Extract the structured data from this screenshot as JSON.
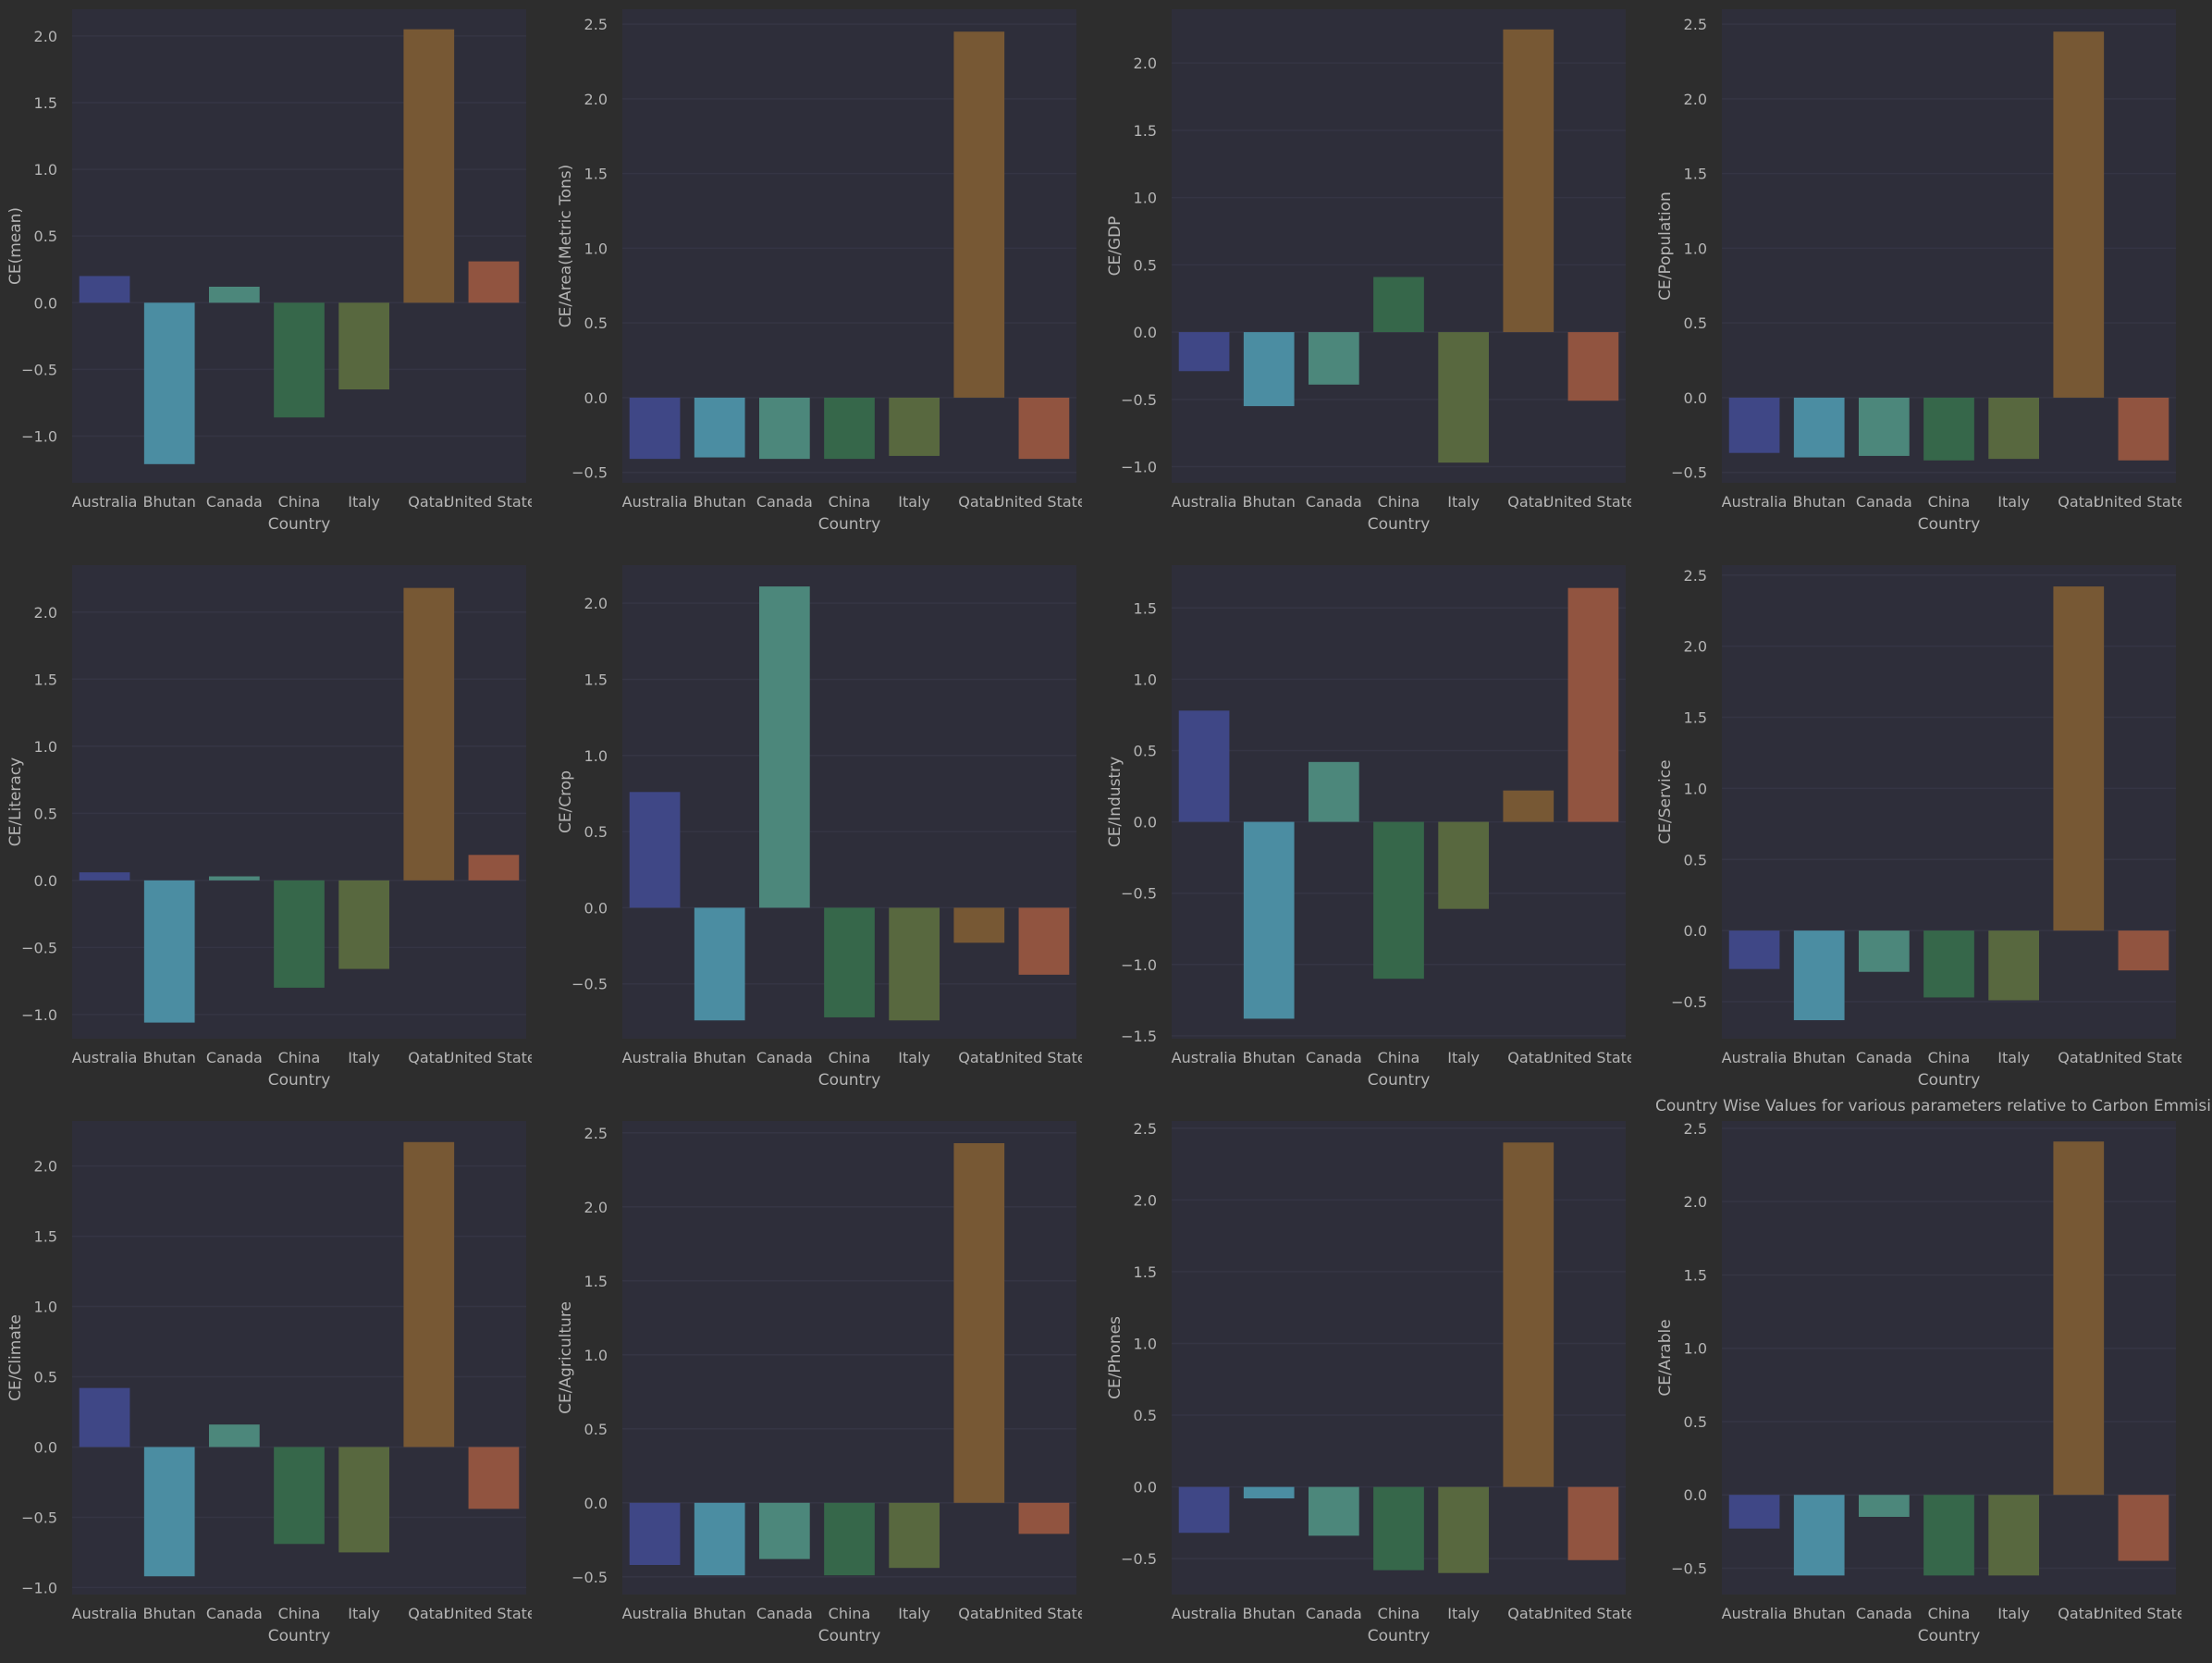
{
  "figure": {
    "suptitle": "Country Wise Values for various parameters relative to Carbon Emmisions",
    "colors": {
      "figure_bg": "#2d2d2d",
      "axes_bg": "#2e2e3a",
      "grid": "#353544",
      "text": "#b4b4b4",
      "bars": [
        "#3f4786",
        "#4b8da2",
        "#4c877b",
        "#36674a",
        "#58683f",
        "#775834",
        "#915440"
      ]
    }
  },
  "chart_data": [
    {
      "type": "bar",
      "xlabel": "Country",
      "ylabel": "CE(mean)",
      "categories": [
        "Australia",
        "Bhutan",
        "Canada",
        "China",
        "Italy",
        "Qatar",
        "United States"
      ],
      "values": [
        0.2,
        -1.21,
        0.12,
        -0.86,
        -0.65,
        2.05,
        0.31
      ],
      "ylim": [
        -1.35,
        2.2
      ],
      "yticks": [
        -1.0,
        -0.5,
        0.0,
        0.5,
        1.0,
        1.5,
        2.0
      ],
      "grid": true
    },
    {
      "type": "bar",
      "xlabel": "Country",
      "ylabel": "CE/Area(Metric Tons)",
      "categories": [
        "Australia",
        "Bhutan",
        "Canada",
        "China",
        "Italy",
        "Qatar",
        "United States"
      ],
      "values": [
        -0.41,
        -0.4,
        -0.41,
        -0.41,
        -0.39,
        2.45,
        -0.41
      ],
      "ylim": [
        -0.57,
        2.6
      ],
      "yticks": [
        -0.5,
        0.0,
        0.5,
        1.0,
        1.5,
        2.0,
        2.5
      ],
      "grid": true
    },
    {
      "type": "bar",
      "xlabel": "Country",
      "ylabel": "CE/GDP",
      "categories": [
        "Australia",
        "Bhutan",
        "Canada",
        "China",
        "Italy",
        "Qatar",
        "United States"
      ],
      "values": [
        -0.29,
        -0.55,
        -0.39,
        0.41,
        -0.97,
        2.25,
        -0.51
      ],
      "ylim": [
        -1.12,
        2.4
      ],
      "yticks": [
        -1.0,
        -0.5,
        0.0,
        0.5,
        1.0,
        1.5,
        2.0
      ],
      "grid": true
    },
    {
      "type": "bar",
      "xlabel": "Country",
      "ylabel": "CE/Population",
      "categories": [
        "Australia",
        "Bhutan",
        "Canada",
        "China",
        "Italy",
        "Qatar",
        "United States"
      ],
      "values": [
        -0.37,
        -0.4,
        -0.39,
        -0.42,
        -0.41,
        2.45,
        -0.42
      ],
      "ylim": [
        -0.57,
        2.6
      ],
      "yticks": [
        -0.5,
        0.0,
        0.5,
        1.0,
        1.5,
        2.0,
        2.5
      ],
      "grid": true
    },
    {
      "type": "bar",
      "xlabel": "Country",
      "ylabel": "CE/Literacy",
      "categories": [
        "Australia",
        "Bhutan",
        "Canada",
        "China",
        "Italy",
        "Qatar",
        "United States"
      ],
      "values": [
        0.06,
        -1.06,
        0.03,
        -0.8,
        -0.66,
        2.18,
        0.19
      ],
      "ylim": [
        -1.18,
        2.35
      ],
      "yticks": [
        -1.0,
        -0.5,
        0.0,
        0.5,
        1.0,
        1.5,
        2.0
      ],
      "grid": true
    },
    {
      "type": "bar",
      "xlabel": "Country",
      "ylabel": "CE/Crop",
      "categories": [
        "Australia",
        "Bhutan",
        "Canada",
        "China",
        "Italy",
        "Qatar",
        "United States"
      ],
      "values": [
        0.76,
        -0.74,
        2.11,
        -0.72,
        -0.74,
        -0.23,
        -0.44
      ],
      "ylim": [
        -0.86,
        2.25
      ],
      "yticks": [
        -0.5,
        0.0,
        0.5,
        1.0,
        1.5,
        2.0
      ],
      "grid": true
    },
    {
      "type": "bar",
      "xlabel": "Country",
      "ylabel": "CE/Industry",
      "categories": [
        "Australia",
        "Bhutan",
        "Canada",
        "China",
        "Italy",
        "Qatar",
        "United States"
      ],
      "values": [
        0.78,
        -1.38,
        0.42,
        -1.1,
        -0.61,
        0.22,
        1.64
      ],
      "ylim": [
        -1.52,
        1.8
      ],
      "yticks": [
        -1.5,
        -1.0,
        -0.5,
        0.0,
        0.5,
        1.0,
        1.5
      ],
      "grid": true
    },
    {
      "type": "bar",
      "xlabel": "Country",
      "ylabel": "CE/Service",
      "categories": [
        "Australia",
        "Bhutan",
        "Canada",
        "China",
        "Italy",
        "Qatar",
        "United States"
      ],
      "values": [
        -0.27,
        -0.63,
        -0.29,
        -0.47,
        -0.49,
        2.42,
        -0.28
      ],
      "ylim": [
        -0.76,
        2.57
      ],
      "yticks": [
        -0.5,
        0.0,
        0.5,
        1.0,
        1.5,
        2.0,
        2.5
      ],
      "grid": true
    },
    {
      "type": "bar",
      "xlabel": "Country",
      "ylabel": "CE/Climate",
      "categories": [
        "Australia",
        "Bhutan",
        "Canada",
        "China",
        "Italy",
        "Qatar",
        "United States"
      ],
      "values": [
        0.42,
        -0.92,
        0.16,
        -0.69,
        -0.75,
        2.17,
        -0.44
      ],
      "ylim": [
        -1.05,
        2.32
      ],
      "yticks": [
        -1.0,
        -0.5,
        0.0,
        0.5,
        1.0,
        1.5,
        2.0
      ],
      "grid": true
    },
    {
      "type": "bar",
      "xlabel": "Country",
      "ylabel": "CE/Agriculture",
      "categories": [
        "Australia",
        "Bhutan",
        "Canada",
        "China",
        "Italy",
        "Qatar",
        "United States"
      ],
      "values": [
        -0.42,
        -0.49,
        -0.38,
        -0.49,
        -0.44,
        2.43,
        -0.21
      ],
      "ylim": [
        -0.62,
        2.58
      ],
      "yticks": [
        -0.5,
        0.0,
        0.5,
        1.0,
        1.5,
        2.0,
        2.5
      ],
      "grid": true
    },
    {
      "type": "bar",
      "xlabel": "Country",
      "ylabel": "CE/Phones",
      "categories": [
        "Australia",
        "Bhutan",
        "Canada",
        "China",
        "Italy",
        "Qatar",
        "United States"
      ],
      "values": [
        -0.32,
        -0.08,
        -0.34,
        -0.58,
        -0.6,
        2.4,
        -0.51
      ],
      "ylim": [
        -0.75,
        2.55
      ],
      "yticks": [
        -0.5,
        0.0,
        0.5,
        1.0,
        1.5,
        2.0,
        2.5
      ],
      "grid": true
    },
    {
      "type": "bar",
      "xlabel": "Country",
      "ylabel": "CE/Arable",
      "categories": [
        "Australia",
        "Bhutan",
        "Canada",
        "China",
        "Italy",
        "Qatar",
        "United States"
      ],
      "values": [
        -0.23,
        -0.55,
        -0.15,
        -0.55,
        -0.55,
        2.41,
        -0.45
      ],
      "ylim": [
        -0.68,
        2.55
      ],
      "yticks": [
        -0.5,
        0.0,
        0.5,
        1.0,
        1.5,
        2.0,
        2.5
      ],
      "grid": true
    }
  ]
}
